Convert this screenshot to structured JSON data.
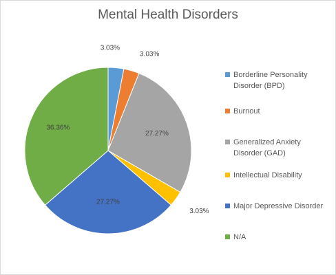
{
  "chart_data": {
    "type": "pie",
    "title": "Mental Health Disorders",
    "categories": [
      "Borderline Personality Disorder (BPD)",
      "Burnout",
      "Generalized Anxiety Disorder (GAD)",
      "Intellectual Disability",
      "Major Depressive Disorder",
      "N/A"
    ],
    "values": [
      3.03,
      3.03,
      27.27,
      3.03,
      27.27,
      36.36
    ],
    "data_labels": [
      "3.03%",
      "3.03%",
      "27.27%",
      "3.03%",
      "27.27%",
      "36.36%"
    ],
    "colors": [
      "#5b9bd5",
      "#ed7d31",
      "#a5a5a5",
      "#ffc000",
      "#4472c4",
      "#70ad47"
    ],
    "legend_position": "right",
    "legend": {
      "lines": [
        [
          "Borderline Personality",
          "Disorder (BPD)"
        ],
        [
          "Burnout"
        ],
        [
          "Generalized Anxiety",
          "Disorder (GAD)"
        ],
        [
          "Intellectual Disability"
        ],
        [
          "Major Depressive Disorder"
        ],
        [
          "N/A"
        ]
      ]
    }
  }
}
